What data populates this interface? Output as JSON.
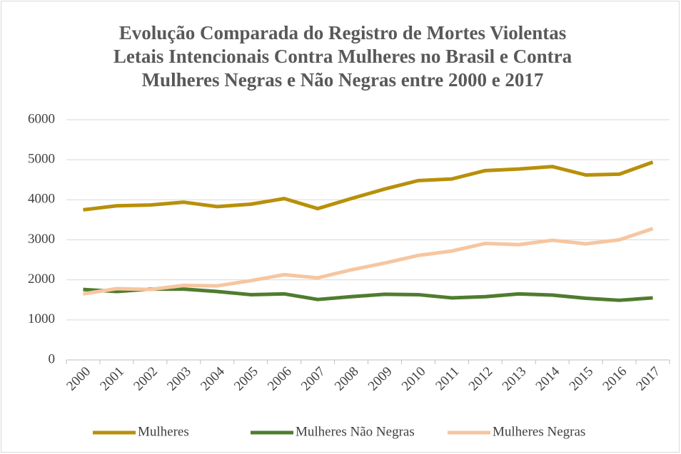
{
  "chart_data": {
    "type": "line",
    "title": "Evolução Comparada do Registro de Mortes Violentas Letais Intencionais Contra Mulheres no Brasil e Contra Mulheres Negras e Não Negras entre 2000 e 2017",
    "categories": [
      "2000",
      "2001",
      "2002",
      "2003",
      "2004",
      "2005",
      "2006",
      "2007",
      "2008",
      "2009",
      "2010",
      "2011",
      "2012",
      "2013",
      "2014",
      "2015",
      "2016",
      "2017"
    ],
    "series": [
      {
        "name": "Mulheres",
        "color": "#b8900a",
        "values": [
          3750,
          3850,
          3870,
          3940,
          3830,
          3890,
          4030,
          3780,
          4030,
          4270,
          4480,
          4520,
          4730,
          4770,
          4830,
          4620,
          4640,
          4940
        ]
      },
      {
        "name": "Mulheres Não Negras",
        "color": "#4e7d2e",
        "values": [
          1760,
          1710,
          1770,
          1770,
          1710,
          1630,
          1650,
          1510,
          1580,
          1640,
          1630,
          1550,
          1580,
          1650,
          1620,
          1540,
          1490,
          1550
        ]
      },
      {
        "name": "Mulheres Negras",
        "color": "#f6c6a0",
        "values": [
          1650,
          1780,
          1760,
          1860,
          1850,
          1980,
          2130,
          2050,
          2250,
          2420,
          2610,
          2720,
          2910,
          2880,
          2990,
          2900,
          3000,
          3280
        ]
      }
    ],
    "ylim": [
      0,
      6000
    ],
    "yticks": [
      0,
      1000,
      2000,
      3000,
      4000,
      5000,
      6000
    ],
    "grid": true,
    "legend": "bottom"
  }
}
